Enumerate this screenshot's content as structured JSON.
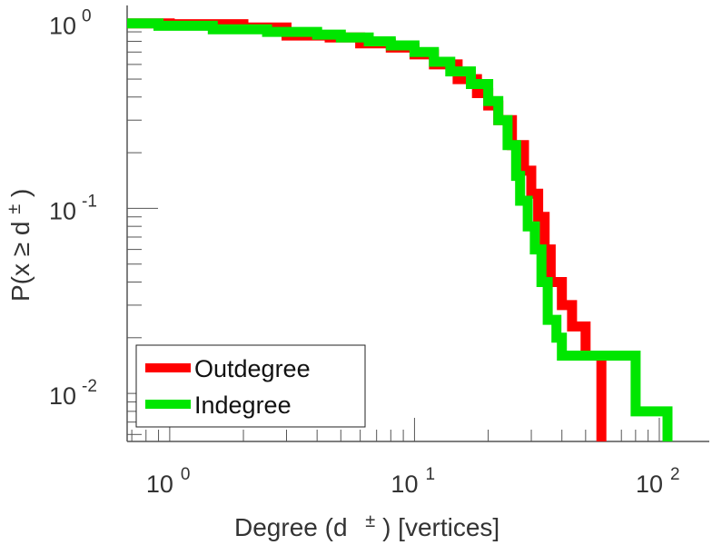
{
  "chart_data": {
    "type": "line",
    "xscale": "log",
    "yscale": "log",
    "xlim": [
      0.67,
      160
    ],
    "ylim": [
      0.0055,
      1.25
    ],
    "xlabel": {
      "prefix": "Degree (d",
      "sup": "±",
      "suffix": ") [vertices]"
    },
    "ylabel": {
      "prefix": "P(x ≥ d",
      "sup": "±",
      "suffix": ")"
    },
    "xticks": [
      {
        "base": "10",
        "exp": "0"
      },
      {
        "base": "10",
        "exp": "1"
      },
      {
        "base": "10",
        "exp": "2"
      }
    ],
    "yticks": [
      {
        "base": "10",
        "exp": "0"
      },
      {
        "base": "10",
        "exp": "-1"
      },
      {
        "base": "10",
        "exp": "-2"
      }
    ],
    "legend": {
      "position": "bottom-left"
    },
    "grid": false,
    "series": [
      {
        "name": "Outdegree",
        "color": "#ff0000",
        "points": [
          [
            0.67,
            1.0
          ],
          [
            1,
            1.0
          ],
          [
            1,
            0.99
          ],
          [
            2,
            0.99
          ],
          [
            2,
            0.95
          ],
          [
            3,
            0.95
          ],
          [
            3,
            0.86
          ],
          [
            4.5,
            0.86
          ],
          [
            4.5,
            0.84
          ],
          [
            6,
            0.84
          ],
          [
            6,
            0.78
          ],
          [
            8,
            0.78
          ],
          [
            8,
            0.74
          ],
          [
            10,
            0.74
          ],
          [
            10,
            0.68
          ],
          [
            12,
            0.68
          ],
          [
            12,
            0.6
          ],
          [
            15,
            0.6
          ],
          [
            15,
            0.5
          ],
          [
            18,
            0.5
          ],
          [
            18,
            0.42
          ],
          [
            20,
            0.42
          ],
          [
            20,
            0.36
          ],
          [
            22,
            0.36
          ],
          [
            22,
            0.3
          ],
          [
            25,
            0.3
          ],
          [
            25,
            0.22
          ],
          [
            28,
            0.22
          ],
          [
            28,
            0.16
          ],
          [
            30,
            0.16
          ],
          [
            30,
            0.12
          ],
          [
            32,
            0.12
          ],
          [
            32,
            0.09
          ],
          [
            34,
            0.09
          ],
          [
            34,
            0.06
          ],
          [
            36,
            0.06
          ],
          [
            36,
            0.04
          ],
          [
            40,
            0.04
          ],
          [
            40,
            0.03
          ],
          [
            44,
            0.03
          ],
          [
            44,
            0.023
          ],
          [
            50,
            0.023
          ],
          [
            50,
            0.016
          ],
          [
            58,
            0.016
          ],
          [
            58,
            0.0055
          ]
        ]
      },
      {
        "name": "Indegree",
        "color": "#00e600",
        "points": [
          [
            0.67,
            1.0
          ],
          [
            0.9,
            1.0
          ],
          [
            0.9,
            0.97
          ],
          [
            1.5,
            0.97
          ],
          [
            1.5,
            0.93
          ],
          [
            2.5,
            0.93
          ],
          [
            2.5,
            0.9
          ],
          [
            4,
            0.9
          ],
          [
            4,
            0.87
          ],
          [
            5,
            0.87
          ],
          [
            5,
            0.84
          ],
          [
            6.5,
            0.84
          ],
          [
            6.5,
            0.8
          ],
          [
            8,
            0.8
          ],
          [
            8,
            0.76
          ],
          [
            10,
            0.76
          ],
          [
            10,
            0.7
          ],
          [
            12,
            0.7
          ],
          [
            12,
            0.62
          ],
          [
            14,
            0.62
          ],
          [
            14,
            0.55
          ],
          [
            17,
            0.55
          ],
          [
            17,
            0.47
          ],
          [
            20,
            0.47
          ],
          [
            20,
            0.38
          ],
          [
            22,
            0.38
          ],
          [
            22,
            0.3
          ],
          [
            24,
            0.3
          ],
          [
            24,
            0.22
          ],
          [
            26,
            0.22
          ],
          [
            26,
            0.15
          ],
          [
            27,
            0.15
          ],
          [
            27,
            0.11
          ],
          [
            29,
            0.11
          ],
          [
            29,
            0.08
          ],
          [
            31,
            0.08
          ],
          [
            31,
            0.06
          ],
          [
            33,
            0.06
          ],
          [
            33,
            0.04
          ],
          [
            35,
            0.04
          ],
          [
            35,
            0.025
          ],
          [
            38,
            0.025
          ],
          [
            38,
            0.02
          ],
          [
            40,
            0.02
          ],
          [
            40,
            0.016
          ],
          [
            80,
            0.016
          ],
          [
            80,
            0.008
          ],
          [
            108,
            0.008
          ],
          [
            108,
            0.0055
          ]
        ]
      }
    ]
  }
}
